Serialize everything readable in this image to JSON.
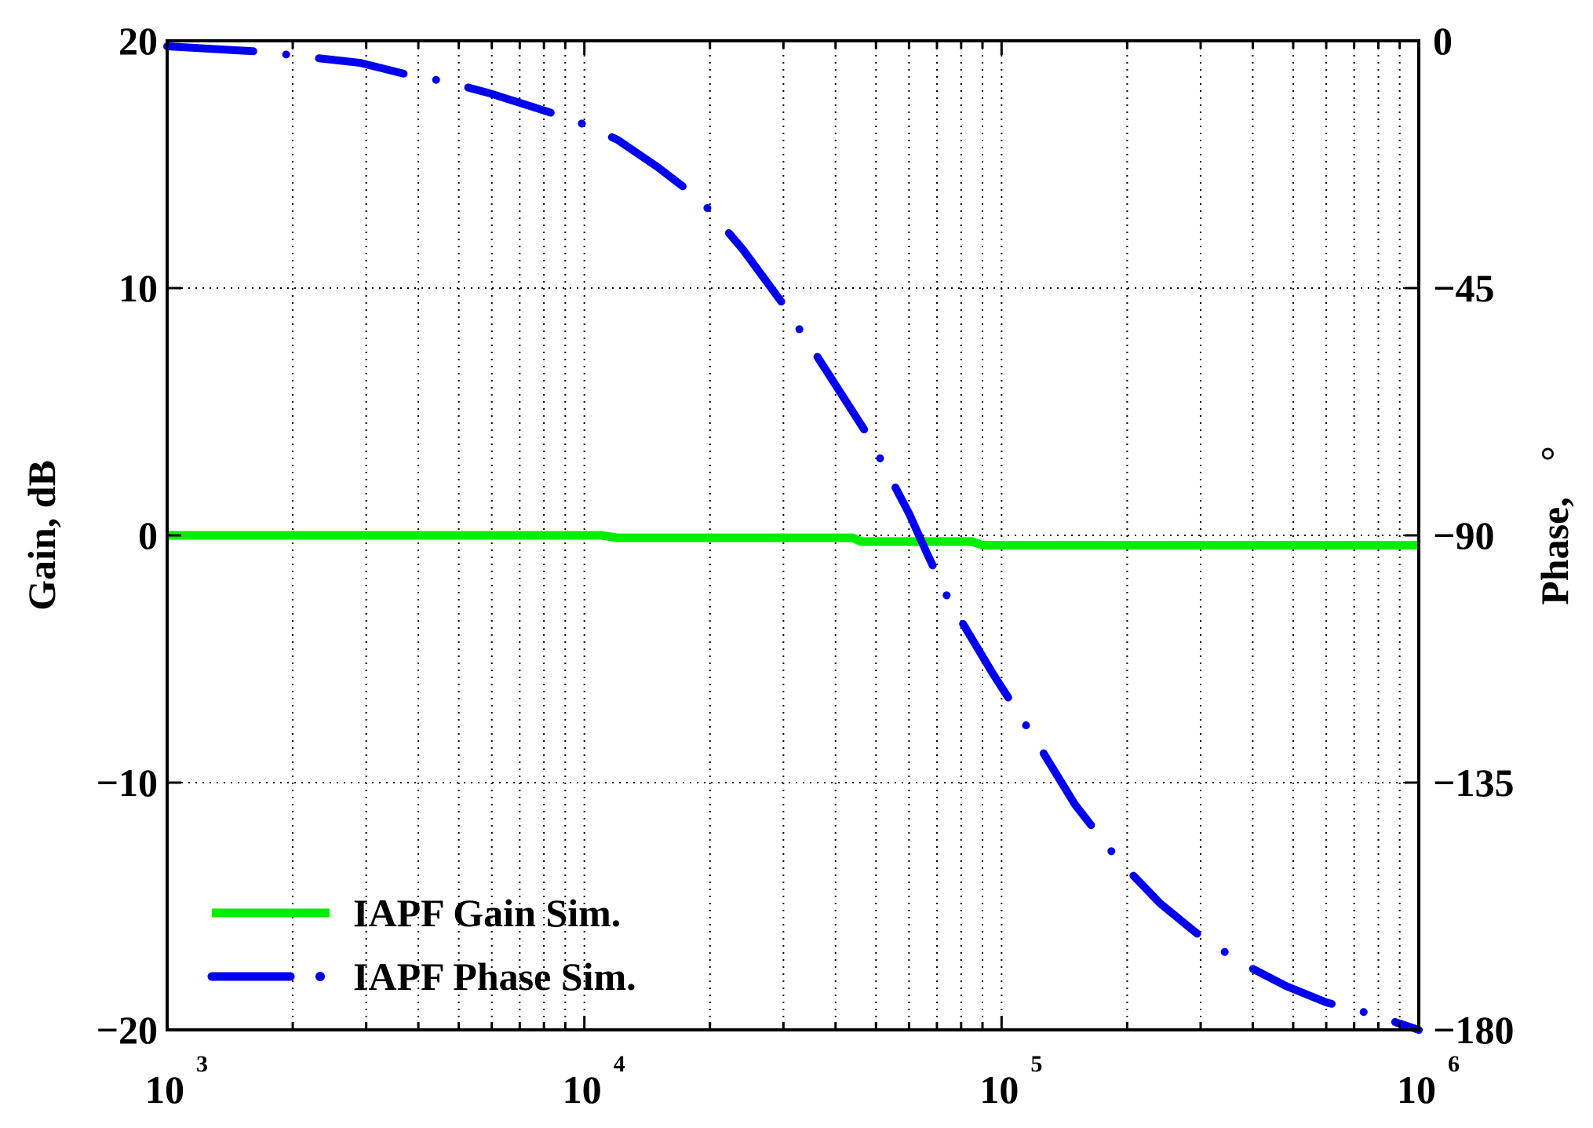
{
  "chart_data": {
    "type": "line",
    "x_scale": "log",
    "xlim": [
      1000,
      1000000
    ],
    "x_ticks": [
      {
        "value": 1000,
        "base": "10",
        "exp": "3"
      },
      {
        "value": 10000,
        "base": "10",
        "exp": "4"
      },
      {
        "value": 100000,
        "base": "10",
        "exp": "5"
      },
      {
        "value": 1000000,
        "base": "10",
        "exp": "6"
      }
    ],
    "ylabel_left": "Gain, dB",
    "ylim_left": [
      -20,
      20
    ],
    "y_ticks_left": [
      {
        "value": 20,
        "label": "20"
      },
      {
        "value": 10,
        "label": "10"
      },
      {
        "value": 0,
        "label": "0"
      },
      {
        "value": -10,
        "label": "−10"
      },
      {
        "value": -20,
        "label": "−20"
      }
    ],
    "ylabel_right": "Phase,",
    "ylabel_right_unit": "°",
    "ylim_right": [
      -180,
      0
    ],
    "y_ticks_right": [
      {
        "value": 0,
        "label": "0"
      },
      {
        "value": -45,
        "label": "−45"
      },
      {
        "value": -90,
        "label": "−90"
      },
      {
        "value": -135,
        "label": "−135"
      },
      {
        "value": -180,
        "label": "−180"
      }
    ],
    "grid": true,
    "legend_position": "bottom-left",
    "series": [
      {
        "name": "IAPF Gain Sim.",
        "axis": "left",
        "color": "#00ee00",
        "style": "solid",
        "x": [
          1000,
          11000,
          12000,
          44000,
          46000,
          85000,
          90000,
          1000000
        ],
        "y": [
          0.0,
          0.0,
          -0.1,
          -0.1,
          -0.25,
          -0.25,
          -0.4,
          -0.4
        ]
      },
      {
        "name": "IAPF Phase Sim.",
        "axis": "right",
        "color": "#0000ee",
        "style": "dash-dot",
        "x": [
          1000,
          1300,
          1700,
          2200,
          2900,
          3700,
          4700,
          5900,
          7500,
          9500,
          12000,
          15000,
          19000,
          24000,
          30000,
          38000,
          48000,
          60000,
          66000,
          75000,
          95000,
          120000,
          150000,
          190000,
          240000,
          300000,
          380000,
          480000,
          600000,
          760000,
          1000000
        ],
        "y": [
          -1,
          -1.5,
          -2,
          -3,
          -4,
          -6,
          -7.5,
          -9.5,
          -12,
          -14.5,
          -18,
          -23,
          -29,
          -38,
          -48,
          -60,
          -72,
          -86,
          -93,
          -102,
          -115,
          -127,
          -139,
          -149,
          -157,
          -163,
          -168,
          -172,
          -175,
          -177,
          -180
        ]
      }
    ]
  }
}
